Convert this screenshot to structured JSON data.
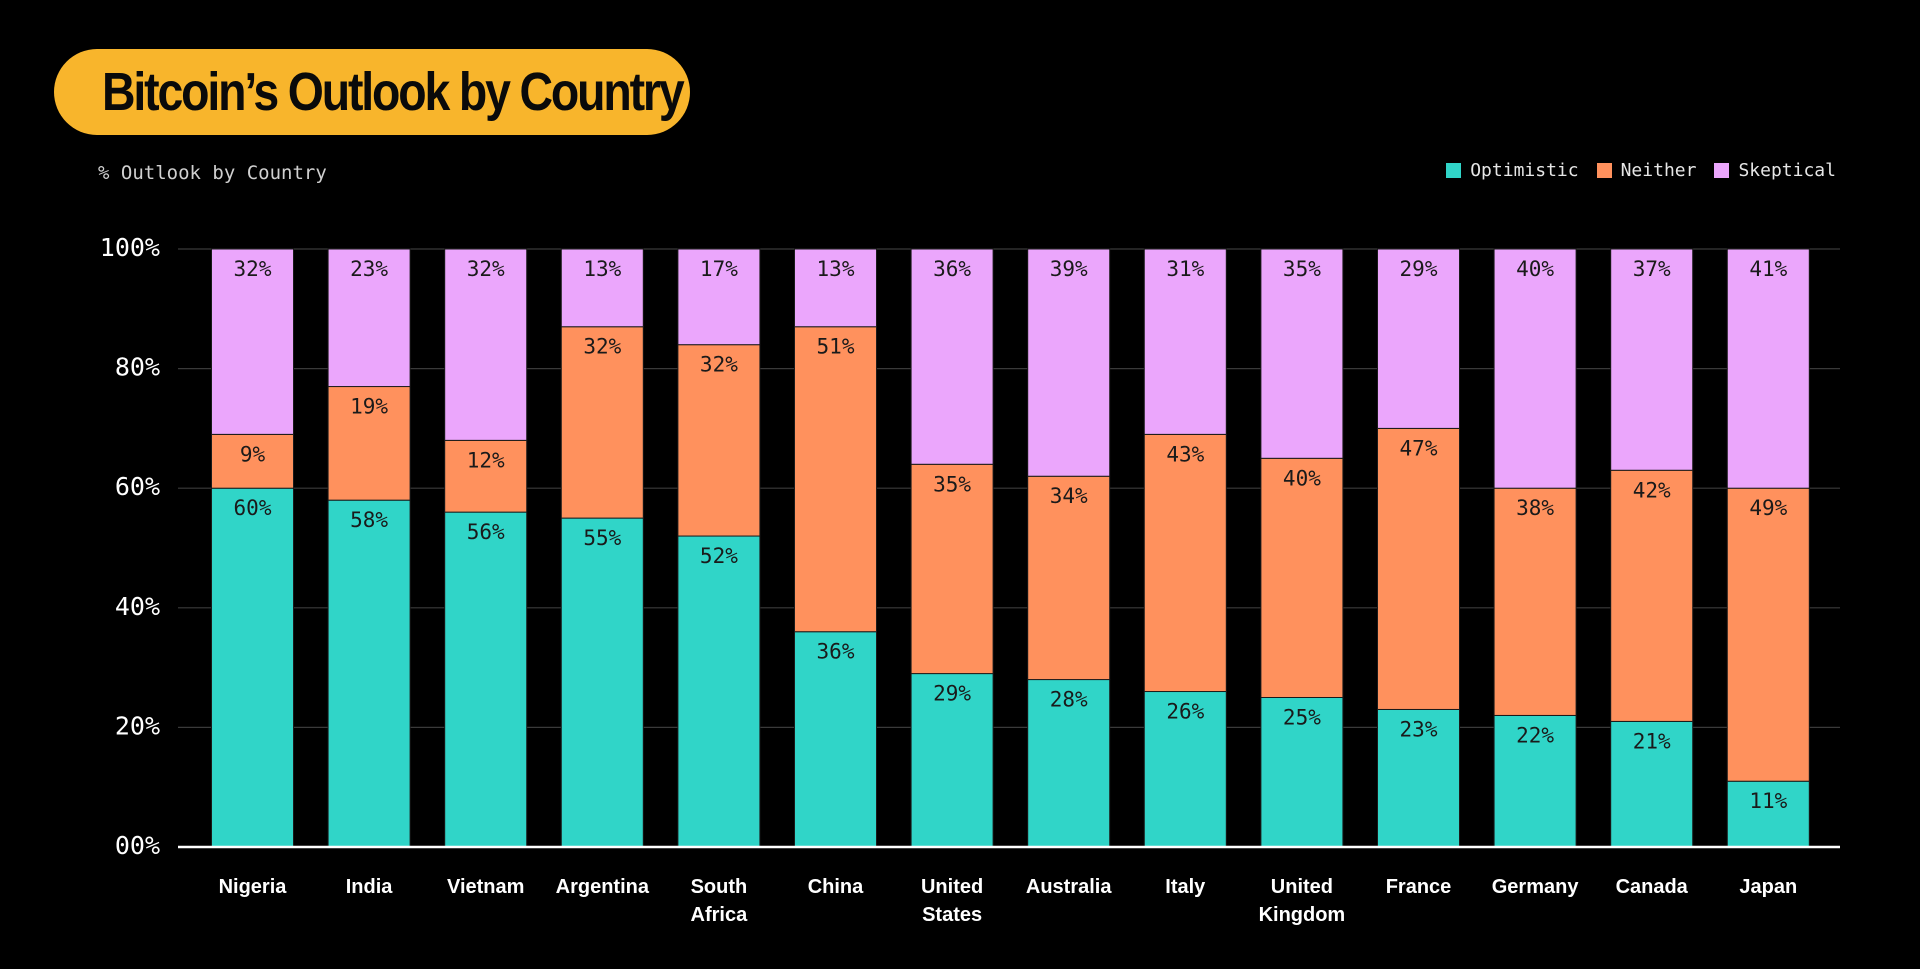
{
  "header": {
    "title": "Bitcoin’s Outlook by Country",
    "subtitle": "% Outlook by Country"
  },
  "colors": {
    "background": "#000000",
    "title_pill": "#f8b52c",
    "optimistic": "#30d5c8",
    "neither": "#ff915d",
    "skeptical": "#eba6fc",
    "gridline": "#3a3a3a",
    "axis": "#ffffff"
  },
  "chart_data": {
    "type": "bar",
    "stacked": true,
    "title": "Bitcoin’s Outlook by Country",
    "subtitle": "% Outlook by Country",
    "xlabel": "",
    "ylabel": "",
    "ylim": [
      0,
      100
    ],
    "yticks": [
      0,
      20,
      40,
      60,
      80,
      100
    ],
    "ytick_labels": [
      "00%",
      "20%",
      "40%",
      "60%",
      "80%",
      "100%"
    ],
    "grid": true,
    "legend_position": "top-right",
    "categories": [
      [
        "Nigeria"
      ],
      [
        "India"
      ],
      [
        "Vietnam"
      ],
      [
        "Argentina"
      ],
      [
        "South",
        "Africa"
      ],
      [
        "China"
      ],
      [
        "United",
        "States"
      ],
      [
        "Australia"
      ],
      [
        "Italy"
      ],
      [
        "United",
        "Kingdom"
      ],
      [
        "France"
      ],
      [
        "Germany"
      ],
      [
        "Canada"
      ],
      [
        "Japan"
      ]
    ],
    "series": [
      {
        "name": "Optimistic",
        "color": "#30d5c8",
        "values": [
          60,
          58,
          56,
          55,
          52,
          36,
          29,
          28,
          26,
          25,
          23,
          22,
          21,
          11
        ],
        "labels": [
          "60%",
          "58%",
          "56%",
          "55%",
          "52%",
          "36%",
          "29%",
          "28%",
          "26%",
          "25%",
          "23%",
          "22%",
          "21%",
          "11%"
        ]
      },
      {
        "name": "Neither",
        "color": "#ff915d",
        "values": [
          9,
          19,
          12,
          32,
          32,
          51,
          35,
          34,
          43,
          40,
          47,
          38,
          42,
          49
        ],
        "labels": [
          "9%",
          "19%",
          "12%",
          "32%",
          "32%",
          "51%",
          "35%",
          "34%",
          "43%",
          "40%",
          "47%",
          "38%",
          "42%",
          "49%"
        ]
      },
      {
        "name": "Skeptical",
        "color": "#eba6fc",
        "values": [
          32,
          23,
          32,
          13,
          17,
          13,
          36,
          39,
          31,
          35,
          29,
          40,
          37,
          41
        ],
        "labels": [
          "32%",
          "23%",
          "32%",
          "13%",
          "17%",
          "13%",
          "36%",
          "39%",
          "31%",
          "35%",
          "29%",
          "40%",
          "37%",
          "41%"
        ]
      }
    ]
  }
}
